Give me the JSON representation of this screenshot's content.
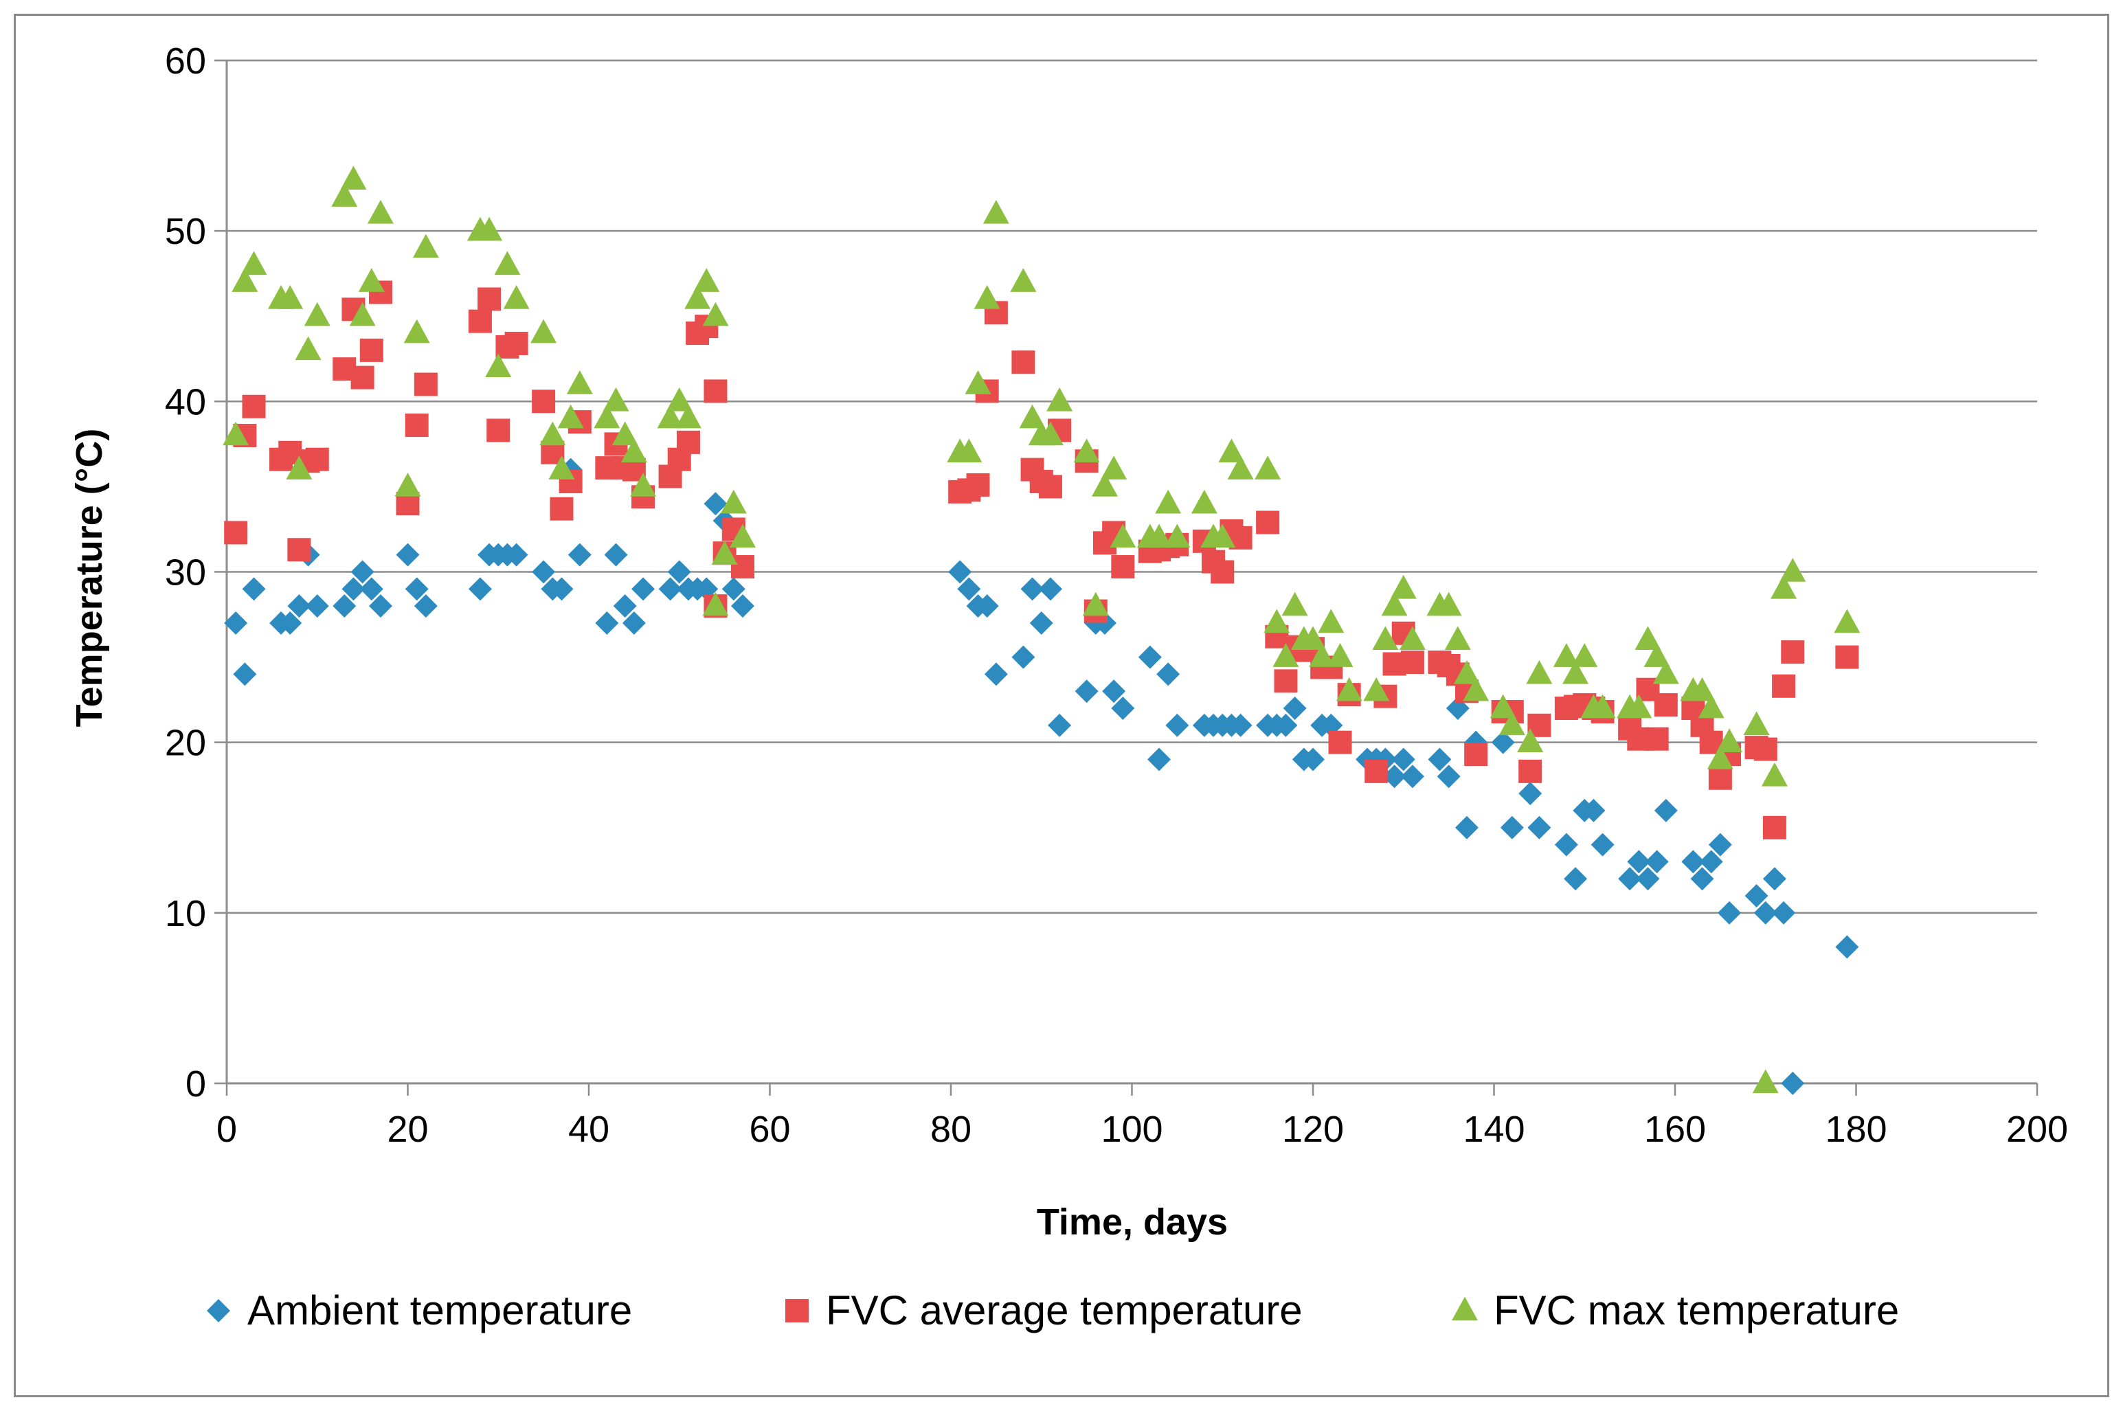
{
  "chart_data": {
    "type": "scatter",
    "title": "",
    "xlabel": "Time, days",
    "ylabel": "Temperature (°C)",
    "xlim": [
      0,
      200
    ],
    "ylim": [
      0,
      60
    ],
    "x_ticks": [
      0,
      20,
      40,
      60,
      80,
      100,
      120,
      140,
      160,
      180,
      200
    ],
    "y_ticks": [
      0,
      10,
      20,
      30,
      40,
      50,
      60
    ],
    "grid": "horizontal",
    "legend_position": "bottom",
    "series": [
      {
        "name": "Ambient temperature",
        "marker": "diamond",
        "color": "#2e8bc0",
        "points": [
          [
            1,
            27
          ],
          [
            2,
            24
          ],
          [
            3,
            29
          ],
          [
            6,
            27
          ],
          [
            7,
            27
          ],
          [
            8,
            28
          ],
          [
            9,
            31
          ],
          [
            10,
            28
          ],
          [
            13,
            28
          ],
          [
            14,
            29
          ],
          [
            15,
            30
          ],
          [
            16,
            29
          ],
          [
            17,
            28
          ],
          [
            20,
            31
          ],
          [
            21,
            29
          ],
          [
            22,
            28
          ],
          [
            28,
            29
          ],
          [
            29,
            31
          ],
          [
            30,
            31
          ],
          [
            31,
            31
          ],
          [
            32,
            31
          ],
          [
            35,
            30
          ],
          [
            36,
            29
          ],
          [
            37,
            29
          ],
          [
            38,
            36
          ],
          [
            39,
            31
          ],
          [
            42,
            27
          ],
          [
            43,
            31
          ],
          [
            44,
            28
          ],
          [
            45,
            27
          ],
          [
            46,
            29
          ],
          [
            49,
            29
          ],
          [
            50,
            30
          ],
          [
            51,
            29
          ],
          [
            52,
            29
          ],
          [
            53,
            29
          ],
          [
            54,
            34
          ],
          [
            55,
            33
          ],
          [
            56,
            29
          ],
          [
            57,
            28
          ],
          [
            81,
            30
          ],
          [
            82,
            29
          ],
          [
            83,
            28
          ],
          [
            84,
            28
          ],
          [
            85,
            24
          ],
          [
            88,
            25
          ],
          [
            89,
            29
          ],
          [
            90,
            27
          ],
          [
            91,
            29
          ],
          [
            92,
            21
          ],
          [
            95,
            23
          ],
          [
            96,
            27
          ],
          [
            97,
            27
          ],
          [
            98,
            23
          ],
          [
            99,
            22
          ],
          [
            102,
            25
          ],
          [
            103,
            19
          ],
          [
            104,
            24
          ],
          [
            105,
            21
          ],
          [
            108,
            21
          ],
          [
            109,
            21
          ],
          [
            110,
            21
          ],
          [
            111,
            21
          ],
          [
            112,
            21
          ],
          [
            115,
            21
          ],
          [
            116,
            21
          ],
          [
            117,
            21
          ],
          [
            118,
            22
          ],
          [
            119,
            19
          ],
          [
            120,
            19
          ],
          [
            121,
            21
          ],
          [
            122,
            21
          ],
          [
            123,
            20
          ],
          [
            126,
            19
          ],
          [
            127,
            19
          ],
          [
            128,
            19
          ],
          [
            129,
            18
          ],
          [
            130,
            19
          ],
          [
            131,
            18
          ],
          [
            134,
            19
          ],
          [
            135,
            18
          ],
          [
            136,
            22
          ],
          [
            137,
            15
          ],
          [
            138,
            20
          ],
          [
            141,
            20
          ],
          [
            142,
            15
          ],
          [
            144,
            17
          ],
          [
            145,
            15
          ],
          [
            148,
            14
          ],
          [
            149,
            12
          ],
          [
            150,
            16
          ],
          [
            151,
            16
          ],
          [
            152,
            14
          ],
          [
            155,
            12
          ],
          [
            156,
            13
          ],
          [
            157,
            12
          ],
          [
            158,
            13
          ],
          [
            159,
            16
          ],
          [
            162,
            13
          ],
          [
            163,
            12
          ],
          [
            164,
            13
          ],
          [
            165,
            14
          ],
          [
            166,
            10
          ],
          [
            169,
            11
          ],
          [
            170,
            10
          ],
          [
            171,
            12
          ],
          [
            172,
            10
          ],
          [
            173,
            0
          ],
          [
            179,
            8
          ]
        ]
      },
      {
        "name": "FVC average temperature",
        "marker": "square",
        "color": "#e84c4c",
        "points": [
          [
            1,
            32.3
          ],
          [
            2,
            38
          ],
          [
            3,
            39.7
          ],
          [
            6,
            36.6
          ],
          [
            7,
            37
          ],
          [
            8,
            31.3
          ],
          [
            9,
            36.5
          ],
          [
            10,
            36.6
          ],
          [
            13,
            41.9
          ],
          [
            14,
            45.4
          ],
          [
            15,
            41.4
          ],
          [
            16,
            43
          ],
          [
            17,
            46.4
          ],
          [
            20,
            34
          ],
          [
            21,
            38.6
          ],
          [
            22,
            41
          ],
          [
            28,
            44.7
          ],
          [
            29,
            46
          ],
          [
            30,
            38.3
          ],
          [
            31,
            43.2
          ],
          [
            32,
            43.4
          ],
          [
            35,
            40
          ],
          [
            36,
            37
          ],
          [
            37,
            33.7
          ],
          [
            38,
            35.3
          ],
          [
            39,
            38.8
          ],
          [
            42,
            36.1
          ],
          [
            43,
            37.5
          ],
          [
            44,
            36.1
          ],
          [
            45,
            36
          ],
          [
            46,
            34.4
          ],
          [
            49,
            35.6
          ],
          [
            50,
            36.6
          ],
          [
            51,
            37.6
          ],
          [
            52,
            44
          ],
          [
            53,
            44.4
          ],
          [
            54,
            40.6
          ],
          [
            54,
            28
          ],
          [
            55,
            31.1
          ],
          [
            56,
            32.5
          ],
          [
            57,
            30.3
          ],
          [
            81,
            34.7
          ],
          [
            82,
            34.8
          ],
          [
            83,
            35.1
          ],
          [
            84,
            40.6
          ],
          [
            85,
            45.2
          ],
          [
            88,
            42.3
          ],
          [
            89,
            36
          ],
          [
            90,
            35.3
          ],
          [
            91,
            35
          ],
          [
            92,
            38.3
          ],
          [
            95,
            36.5
          ],
          [
            96,
            27.7
          ],
          [
            97,
            31.7
          ],
          [
            98,
            32.3
          ],
          [
            99,
            30.3
          ],
          [
            102,
            31.2
          ],
          [
            103,
            31.3
          ],
          [
            104,
            31.5
          ],
          [
            105,
            31.6
          ],
          [
            108,
            31.8
          ],
          [
            109,
            30.6
          ],
          [
            110,
            30
          ],
          [
            111,
            32.4
          ],
          [
            112,
            32
          ],
          [
            115,
            32.9
          ],
          [
            116,
            26.2
          ],
          [
            117,
            23.6
          ],
          [
            118,
            25.6
          ],
          [
            119,
            25.4
          ],
          [
            120,
            25.5
          ],
          [
            121,
            24.4
          ],
          [
            122,
            24.4
          ],
          [
            123,
            20
          ],
          [
            124,
            22.8
          ],
          [
            127,
            18.3
          ],
          [
            128,
            22.7
          ],
          [
            129,
            24.6
          ],
          [
            130,
            26.4
          ],
          [
            131,
            24.7
          ],
          [
            134,
            24.7
          ],
          [
            135,
            24.5
          ],
          [
            136,
            24
          ],
          [
            137,
            23
          ],
          [
            138,
            19.3
          ],
          [
            141,
            21.8
          ],
          [
            142,
            21.8
          ],
          [
            144,
            18.3
          ],
          [
            145,
            21
          ],
          [
            148,
            22
          ],
          [
            149,
            22.1
          ],
          [
            150,
            22.2
          ],
          [
            151,
            22
          ],
          [
            152,
            21.8
          ],
          [
            155,
            20.8
          ],
          [
            156,
            20.2
          ],
          [
            157,
            23.1
          ],
          [
            158,
            20.2
          ],
          [
            159,
            22.2
          ],
          [
            162,
            22
          ],
          [
            163,
            21
          ],
          [
            164,
            20
          ],
          [
            165,
            17.9
          ],
          [
            166,
            19.3
          ],
          [
            169,
            19.7
          ],
          [
            170,
            19.6
          ],
          [
            171,
            15
          ],
          [
            172,
            23.3
          ],
          [
            173,
            25.3
          ],
          [
            179,
            25
          ]
        ]
      },
      {
        "name": "FVC max temperature",
        "marker": "triangle",
        "color": "#8cbe3f",
        "points": [
          [
            1,
            38
          ],
          [
            2,
            47
          ],
          [
            3,
            48
          ],
          [
            6,
            46
          ],
          [
            7,
            46
          ],
          [
            8,
            36
          ],
          [
            9,
            43
          ],
          [
            10,
            45
          ],
          [
            13,
            52
          ],
          [
            14,
            53
          ],
          [
            15,
            45
          ],
          [
            16,
            47
          ],
          [
            17,
            51
          ],
          [
            20,
            35
          ],
          [
            21,
            44
          ],
          [
            22,
            49
          ],
          [
            28,
            50
          ],
          [
            29,
            50
          ],
          [
            30,
            42
          ],
          [
            31,
            48
          ],
          [
            32,
            46
          ],
          [
            35,
            44
          ],
          [
            36,
            38
          ],
          [
            37,
            36
          ],
          [
            38,
            39
          ],
          [
            39,
            41
          ],
          [
            42,
            39
          ],
          [
            43,
            40
          ],
          [
            44,
            38
          ],
          [
            45,
            37
          ],
          [
            46,
            35
          ],
          [
            49,
            39
          ],
          [
            50,
            40
          ],
          [
            51,
            39
          ],
          [
            52,
            46
          ],
          [
            53,
            47
          ],
          [
            54,
            45
          ],
          [
            54,
            28
          ],
          [
            55,
            31
          ],
          [
            56,
            34
          ],
          [
            57,
            32
          ],
          [
            81,
            37
          ],
          [
            82,
            37
          ],
          [
            83,
            41
          ],
          [
            84,
            46
          ],
          [
            85,
            51
          ],
          [
            88,
            47
          ],
          [
            89,
            39
          ],
          [
            90,
            38
          ],
          [
            91,
            38
          ],
          [
            92,
            40
          ],
          [
            95,
            37
          ],
          [
            96,
            28
          ],
          [
            97,
            35
          ],
          [
            98,
            36
          ],
          [
            99,
            32
          ],
          [
            102,
            32
          ],
          [
            103,
            32
          ],
          [
            104,
            34
          ],
          [
            105,
            32
          ],
          [
            108,
            34
          ],
          [
            109,
            32
          ],
          [
            110,
            32
          ],
          [
            111,
            37
          ],
          [
            112,
            36
          ],
          [
            115,
            36
          ],
          [
            116,
            27
          ],
          [
            117,
            25
          ],
          [
            118,
            28
          ],
          [
            119,
            26
          ],
          [
            120,
            26
          ],
          [
            121,
            25
          ],
          [
            122,
            27
          ],
          [
            123,
            25
          ],
          [
            124,
            23
          ],
          [
            127,
            23
          ],
          [
            128,
            26
          ],
          [
            129,
            28
          ],
          [
            130,
            29
          ],
          [
            131,
            26
          ],
          [
            134,
            28
          ],
          [
            135,
            28
          ],
          [
            136,
            26
          ],
          [
            137,
            24
          ],
          [
            138,
            23
          ],
          [
            141,
            22
          ],
          [
            142,
            21
          ],
          [
            144,
            20
          ],
          [
            145,
            24
          ],
          [
            148,
            25
          ],
          [
            149,
            24
          ],
          [
            150,
            25
          ],
          [
            151,
            22
          ],
          [
            152,
            22
          ],
          [
            155,
            22
          ],
          [
            156,
            22
          ],
          [
            157,
            26
          ],
          [
            158,
            25
          ],
          [
            159,
            24
          ],
          [
            162,
            23
          ],
          [
            163,
            23
          ],
          [
            164,
            22
          ],
          [
            165,
            19
          ],
          [
            166,
            20
          ],
          [
            169,
            21
          ],
          [
            170,
            0
          ],
          [
            171,
            18
          ],
          [
            172,
            29
          ],
          [
            173,
            30
          ],
          [
            179,
            27
          ]
        ]
      }
    ]
  }
}
